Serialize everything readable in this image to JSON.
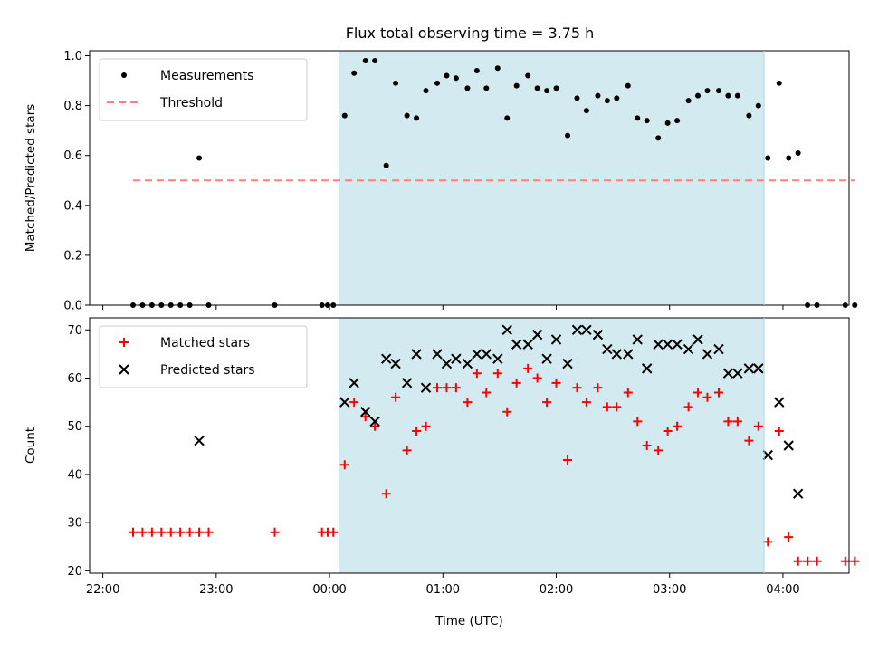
{
  "title": "Flux total observing time = 3.75 h",
  "colors": {
    "measurement": "#000000",
    "threshold": "#ff7f7f",
    "matched": "#ff0000",
    "predicted": "#000000",
    "band": "#d4eaf1"
  },
  "chart_data": [
    {
      "type": "scatter",
      "ylabel": "Matched/Predicted stars",
      "xlabel": "",
      "ylim": [
        0,
        1.02
      ],
      "xlim": [
        "21:53",
        "04:35"
      ],
      "yticks": [
        "0.0",
        "0.2",
        "0.4",
        "0.6",
        "0.8",
        "1.0"
      ],
      "observing_window": [
        "00:05",
        "03:50"
      ],
      "legend": {
        "position": "top-left",
        "entries": [
          "Measurements",
          "Threshold"
        ]
      },
      "series": [
        {
          "name": "Measurements",
          "marker": "dot",
          "points": [
            [
              "22:16",
              0
            ],
            [
              "22:21",
              0
            ],
            [
              "22:26",
              0
            ],
            [
              "22:31",
              0
            ],
            [
              "22:36",
              0
            ],
            [
              "22:41",
              0
            ],
            [
              "22:46",
              0
            ],
            [
              "22:51",
              0.59
            ],
            [
              "22:56",
              0
            ],
            [
              "23:31",
              0
            ],
            [
              "23:56",
              0
            ],
            [
              "23:59",
              0
            ],
            [
              "00:02",
              0
            ],
            [
              "00:08",
              0.76
            ],
            [
              "00:13",
              0.93
            ],
            [
              "00:19",
              0.98
            ],
            [
              "00:24",
              0.98
            ],
            [
              "00:30",
              0.56
            ],
            [
              "00:35",
              0.89
            ],
            [
              "00:41",
              0.76
            ],
            [
              "00:46",
              0.75
            ],
            [
              "00:51",
              0.86
            ],
            [
              "00:57",
              0.89
            ],
            [
              "01:02",
              0.92
            ],
            [
              "01:07",
              0.91
            ],
            [
              "01:13",
              0.87
            ],
            [
              "01:18",
              0.94
            ],
            [
              "01:23",
              0.87
            ],
            [
              "01:29",
              0.95
            ],
            [
              "01:34",
              0.75
            ],
            [
              "01:39",
              0.88
            ],
            [
              "01:45",
              0.92
            ],
            [
              "01:50",
              0.87
            ],
            [
              "01:55",
              0.86
            ],
            [
              "02:00",
              0.87
            ],
            [
              "02:06",
              0.68
            ],
            [
              "02:11",
              0.83
            ],
            [
              "02:16",
              0.78
            ],
            [
              "02:22",
              0.84
            ],
            [
              "02:27",
              0.82
            ],
            [
              "02:32",
              0.83
            ],
            [
              "02:38",
              0.88
            ],
            [
              "02:43",
              0.75
            ],
            [
              "02:48",
              0.74
            ],
            [
              "02:54",
              0.67
            ],
            [
              "02:59",
              0.73
            ],
            [
              "03:04",
              0.74
            ],
            [
              "03:10",
              0.82
            ],
            [
              "03:15",
              0.84
            ],
            [
              "03:20",
              0.86
            ],
            [
              "03:26",
              0.86
            ],
            [
              "03:31",
              0.84
            ],
            [
              "03:36",
              0.84
            ],
            [
              "03:42",
              0.76
            ],
            [
              "03:47",
              0.8
            ],
            [
              "03:52",
              0.59
            ],
            [
              "03:58",
              0.89
            ],
            [
              "04:03",
              0.59
            ],
            [
              "04:08",
              0.61
            ],
            [
              "04:13",
              0
            ],
            [
              "04:18",
              0
            ],
            [
              "04:33",
              0
            ],
            [
              "04:38",
              0
            ]
          ]
        },
        {
          "name": "Threshold",
          "style": "dashed",
          "points": [
            [
              "22:16",
              0.5
            ],
            [
              "04:38",
              0.5
            ]
          ]
        }
      ]
    },
    {
      "type": "scatter",
      "ylabel": "Count",
      "xlabel": "Time (UTC)",
      "ylim": [
        19.5,
        72.5
      ],
      "xlim": [
        "21:53",
        "04:35"
      ],
      "yticks": [
        "20",
        "30",
        "40",
        "50",
        "60",
        "70"
      ],
      "xticks": [
        "22:00",
        "23:00",
        "00:00",
        "01:00",
        "02:00",
        "03:00",
        "04:00"
      ],
      "observing_window": [
        "00:05",
        "03:50"
      ],
      "legend": {
        "position": "top-left",
        "entries": [
          "Matched stars",
          "Predicted stars"
        ]
      },
      "series": [
        {
          "name": "Matched stars",
          "marker": "plus",
          "points": [
            [
              "22:16",
              28
            ],
            [
              "22:21",
              28
            ],
            [
              "22:26",
              28
            ],
            [
              "22:31",
              28
            ],
            [
              "22:36",
              28
            ],
            [
              "22:41",
              28
            ],
            [
              "22:46",
              28
            ],
            [
              "22:51",
              28
            ],
            [
              "22:56",
              28
            ],
            [
              "23:31",
              28
            ],
            [
              "23:56",
              28
            ],
            [
              "23:59",
              28
            ],
            [
              "00:02",
              28
            ],
            [
              "00:08",
              42
            ],
            [
              "00:13",
              55
            ],
            [
              "00:19",
              52
            ],
            [
              "00:24",
              50
            ],
            [
              "00:30",
              36
            ],
            [
              "00:35",
              56
            ],
            [
              "00:41",
              45
            ],
            [
              "00:46",
              49
            ],
            [
              "00:51",
              50
            ],
            [
              "00:57",
              58
            ],
            [
              "01:02",
              58
            ],
            [
              "01:07",
              58
            ],
            [
              "01:13",
              55
            ],
            [
              "01:18",
              61
            ],
            [
              "01:23",
              57
            ],
            [
              "01:29",
              61
            ],
            [
              "01:34",
              53
            ],
            [
              "01:39",
              59
            ],
            [
              "01:45",
              62
            ],
            [
              "01:50",
              60
            ],
            [
              "01:55",
              55
            ],
            [
              "02:00",
              59
            ],
            [
              "02:06",
              43
            ],
            [
              "02:11",
              58
            ],
            [
              "02:16",
              55
            ],
            [
              "02:22",
              58
            ],
            [
              "02:27",
              54
            ],
            [
              "02:32",
              54
            ],
            [
              "02:38",
              57
            ],
            [
              "02:43",
              51
            ],
            [
              "02:48",
              46
            ],
            [
              "02:54",
              45
            ],
            [
              "02:59",
              49
            ],
            [
              "03:04",
              50
            ],
            [
              "03:10",
              54
            ],
            [
              "03:15",
              57
            ],
            [
              "03:20",
              56
            ],
            [
              "03:26",
              57
            ],
            [
              "03:31",
              51
            ],
            [
              "03:36",
              51
            ],
            [
              "03:42",
              47
            ],
            [
              "03:47",
              50
            ],
            [
              "03:52",
              26
            ],
            [
              "03:58",
              49
            ],
            [
              "04:03",
              27
            ],
            [
              "04:08",
              22
            ],
            [
              "04:13",
              22
            ],
            [
              "04:18",
              22
            ],
            [
              "04:33",
              22
            ],
            [
              "04:38",
              22
            ]
          ]
        },
        {
          "name": "Predicted stars",
          "marker": "cross",
          "points": [
            [
              "22:51",
              47
            ],
            [
              "00:08",
              55
            ],
            [
              "00:13",
              59
            ],
            [
              "00:19",
              53
            ],
            [
              "00:24",
              51
            ],
            [
              "00:30",
              64
            ],
            [
              "00:35",
              63
            ],
            [
              "00:41",
              59
            ],
            [
              "00:46",
              65
            ],
            [
              "00:51",
              58
            ],
            [
              "00:57",
              65
            ],
            [
              "01:02",
              63
            ],
            [
              "01:07",
              64
            ],
            [
              "01:13",
              63
            ],
            [
              "01:18",
              65
            ],
            [
              "01:23",
              65
            ],
            [
              "01:29",
              64
            ],
            [
              "01:34",
              70
            ],
            [
              "01:39",
              67
            ],
            [
              "01:45",
              67
            ],
            [
              "01:50",
              69
            ],
            [
              "01:55",
              64
            ],
            [
              "02:00",
              68
            ],
            [
              "02:06",
              63
            ],
            [
              "02:11",
              70
            ],
            [
              "02:16",
              70
            ],
            [
              "02:22",
              69
            ],
            [
              "02:27",
              66
            ],
            [
              "02:32",
              65
            ],
            [
              "02:38",
              65
            ],
            [
              "02:43",
              68
            ],
            [
              "02:48",
              62
            ],
            [
              "02:54",
              67
            ],
            [
              "02:59",
              67
            ],
            [
              "03:04",
              67
            ],
            [
              "03:10",
              66
            ],
            [
              "03:15",
              68
            ],
            [
              "03:20",
              65
            ],
            [
              "03:26",
              66
            ],
            [
              "03:31",
              61
            ],
            [
              "03:36",
              61
            ],
            [
              "03:42",
              62
            ],
            [
              "03:47",
              62
            ],
            [
              "03:52",
              44
            ],
            [
              "03:58",
              55
            ],
            [
              "04:03",
              46
            ],
            [
              "04:08",
              36
            ]
          ]
        }
      ]
    }
  ]
}
